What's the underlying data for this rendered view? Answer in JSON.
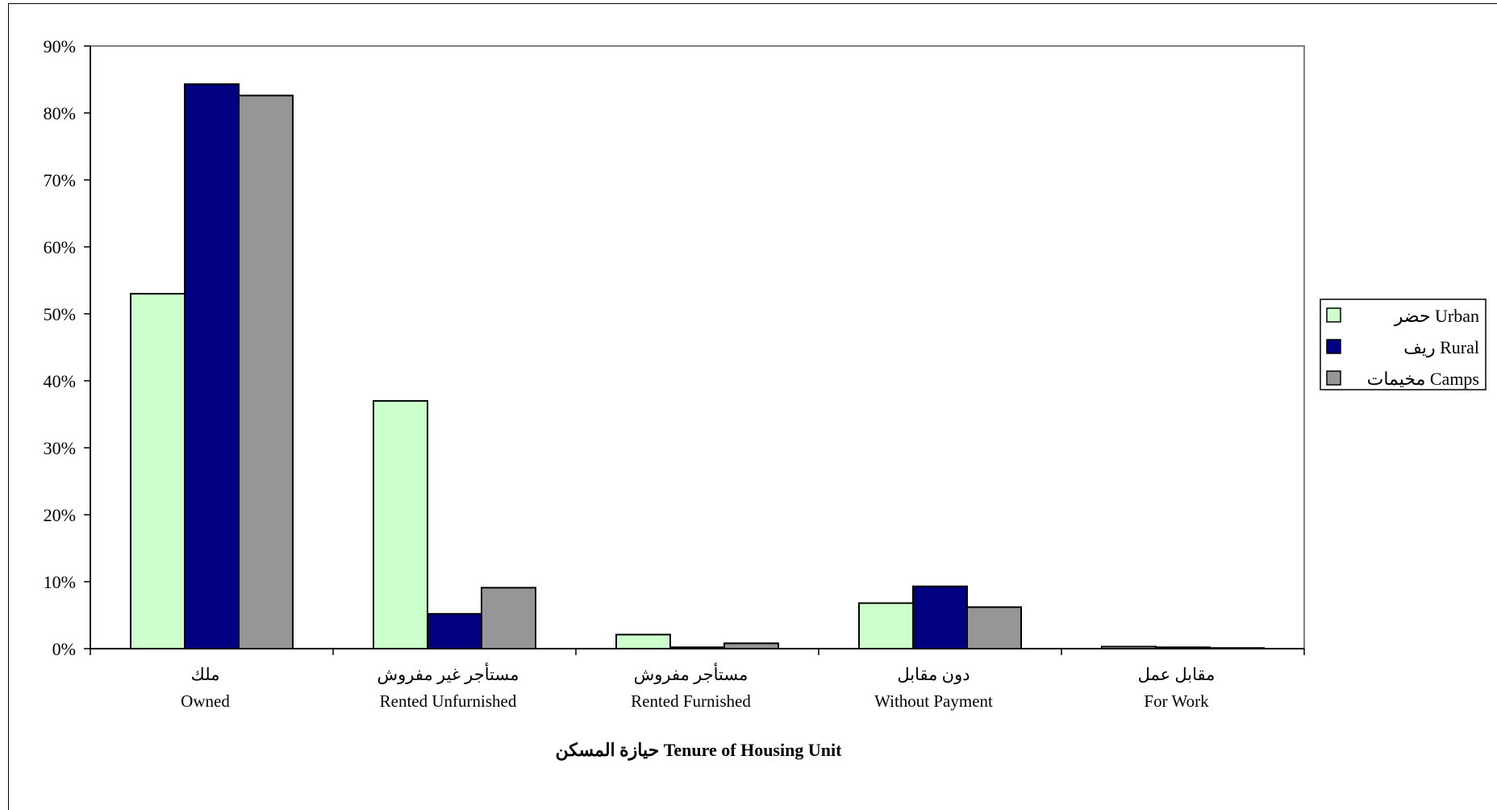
{
  "chart_data": {
    "type": "bar",
    "title": "حيازة المسكن   Tenure of Housing Unit",
    "xlabel": "حيازة المسكن   Tenure of Housing Unit",
    "ylabel": "",
    "ylim": [
      0,
      90
    ],
    "yticks": [
      "0%",
      "10%",
      "20%",
      "30%",
      "40%",
      "50%",
      "60%",
      "70%",
      "80%",
      "90%"
    ],
    "categories": [
      {
        "ar": "ملك",
        "en": "Owned"
      },
      {
        "ar": "مستأجر غير مفروش",
        "en": "Rented Unfurnished"
      },
      {
        "ar": "مستأجر مفروش",
        "en": "Rented Furnished"
      },
      {
        "ar": "دون مقابل",
        "en": "Without Payment"
      },
      {
        "ar": "مقابل عمل",
        "en": "For Work"
      }
    ],
    "series": [
      {
        "name": "حضر  Urban",
        "color": "#ccffcc",
        "values": [
          53.0,
          37.0,
          2.1,
          6.8,
          0.3
        ]
      },
      {
        "name": "ريف  Rural",
        "color": "#000080",
        "values": [
          84.3,
          5.2,
          0.2,
          9.3,
          0.2
        ]
      },
      {
        "name": "مخيمات  Camps",
        "color": "#969696",
        "values": [
          82.6,
          9.1,
          0.8,
          6.2,
          0.1
        ]
      }
    ],
    "grid": false,
    "legend_position": "right"
  }
}
